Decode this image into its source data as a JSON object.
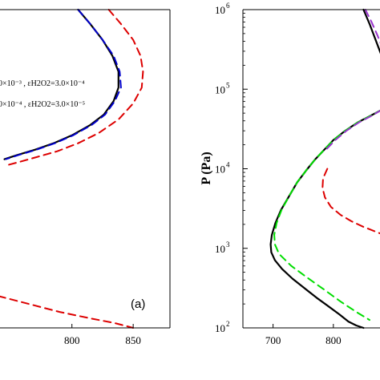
{
  "chart_data": [
    {
      "type": "line",
      "panel_label": "(a)",
      "xlabel": "",
      "ylabel": "",
      "xlim": [
        740,
        880
      ],
      "ylim_log10": [
        2,
        6
      ],
      "y_scale": "log",
      "x_ticks": [
        800,
        850
      ],
      "legend_entries": [
        "0×10⁻³ , εH2O2=3.0×10⁻⁴",
        "0×10⁻⁴ , εH2O2=3.0×10⁻⁵"
      ],
      "series": [
        {
          "color": "#000000",
          "dash": "solid",
          "x": [
            805,
            815,
            825,
            833,
            838,
            838,
            834,
            826,
            815,
            800,
            785,
            770,
            755,
            745
          ],
          "log10_p": [
            6.0,
            5.82,
            5.62,
            5.42,
            5.22,
            5.02,
            4.85,
            4.68,
            4.55,
            4.42,
            4.32,
            4.24,
            4.17,
            4.12
          ]
        },
        {
          "color": "#0000cc",
          "dash": "dashed",
          "x": [
            805,
            815,
            825,
            834,
            839,
            840,
            835,
            827,
            816,
            801,
            786,
            771,
            756,
            746
          ],
          "log10_p": [
            6.0,
            5.82,
            5.62,
            5.42,
            5.22,
            5.02,
            4.85,
            4.68,
            4.55,
            4.42,
            4.32,
            4.24,
            4.17,
            4.12
          ]
        },
        {
          "color": "#dd0000",
          "dash": "dashed",
          "x": [
            830,
            840,
            850,
            856,
            858,
            857,
            850,
            838,
            822,
            805,
            788,
            772,
            758,
            746
          ],
          "log10_p": [
            6.0,
            5.82,
            5.62,
            5.42,
            5.22,
            5.02,
            4.82,
            4.62,
            4.45,
            4.32,
            4.22,
            4.15,
            4.09,
            4.04
          ]
        },
        {
          "color": "#dd0000",
          "dash": "dashed",
          "x": [
            740,
            765,
            790,
            815,
            835,
            850
          ],
          "log10_p": [
            2.4,
            2.3,
            2.2,
            2.12,
            2.06,
            2.0
          ]
        }
      ]
    },
    {
      "type": "line",
      "panel_label": "",
      "xlabel": "",
      "ylabel": "P (Pa)",
      "xlim": [
        650,
        880
      ],
      "ylim_log10": [
        2,
        6
      ],
      "y_scale": "log",
      "x_ticks": [
        700,
        800
      ],
      "y_ticks": [
        {
          "base": "10",
          "exp": "2",
          "log10": 2
        },
        {
          "base": "10",
          "exp": "3",
          "log10": 3
        },
        {
          "base": "10",
          "exp": "4",
          "log10": 4
        },
        {
          "base": "10",
          "exp": "5",
          "log10": 5
        },
        {
          "base": "10",
          "exp": "6",
          "log10": 6
        }
      ],
      "series": [
        {
          "color": "#000000",
          "dash": "solid",
          "x": [
            880,
            860,
            840,
            820,
            800,
            785,
            770,
            755,
            740,
            727,
            713,
            704,
            698,
            696,
            697,
            703,
            715,
            732,
            752,
            772,
            792,
            810,
            825,
            838,
            850
          ],
          "log10_p": [
            4.74,
            4.66,
            4.58,
            4.48,
            4.36,
            4.24,
            4.12,
            3.98,
            3.83,
            3.66,
            3.48,
            3.32,
            3.17,
            3.05,
            2.95,
            2.85,
            2.74,
            2.62,
            2.5,
            2.38,
            2.27,
            2.17,
            2.08,
            2.03,
            2.0
          ]
        },
        {
          "color": "#000000",
          "dash": "solid",
          "x": [
            850,
            860,
            870,
            880
          ],
          "log10_p": [
            6.0,
            5.82,
            5.62,
            5.42
          ]
        },
        {
          "color": "#00dd00",
          "dash": "dashed",
          "x": [
            880,
            860,
            840,
            820,
            800,
            785,
            770,
            755,
            740,
            727,
            714,
            706,
            702,
            703,
            710,
            730,
            757,
            785,
            812,
            838,
            860
          ],
          "log10_p": [
            4.74,
            4.66,
            4.58,
            4.48,
            4.36,
            4.24,
            4.12,
            3.98,
            3.83,
            3.66,
            3.48,
            3.32,
            3.17,
            3.05,
            2.93,
            2.78,
            2.63,
            2.48,
            2.33,
            2.2,
            2.1
          ]
        },
        {
          "color": "#9933cc",
          "dash": "dashed",
          "x": [
            880,
            862,
            842,
            822,
            803,
            789
          ],
          "log10_p": [
            4.74,
            4.66,
            4.58,
            4.48,
            4.36,
            4.25
          ]
        },
        {
          "color": "#9933cc",
          "dash": "dashed",
          "x": [
            853,
            863,
            873,
            880
          ],
          "log10_p": [
            6.0,
            5.85,
            5.68,
            5.55
          ]
        },
        {
          "color": "#dd0000",
          "dash": "dashed",
          "x": [
            790,
            783,
            782,
            786,
            796,
            812,
            830,
            850,
            870,
            880
          ],
          "log10_p": [
            4.0,
            3.88,
            3.76,
            3.64,
            3.52,
            3.42,
            3.34,
            3.27,
            3.21,
            3.18
          ]
        }
      ]
    }
  ]
}
